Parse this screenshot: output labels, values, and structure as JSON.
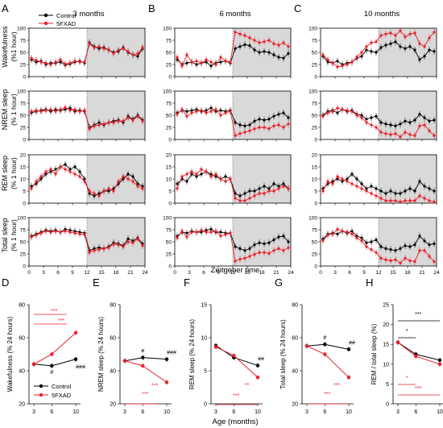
{
  "panel_letters": [
    "A",
    "B",
    "C",
    "D",
    "E",
    "F",
    "G",
    "H"
  ],
  "groups": [
    "3 months",
    "6 months",
    "10 months"
  ],
  "row_labels": [
    [
      "Wakefulness",
      "(%1 hour)"
    ],
    [
      "NREM sleep",
      "(% 1 hour)"
    ],
    [
      "REM sleep",
      "(% 1 hour)"
    ],
    [
      "Total sleep",
      "(% 1 hour)"
    ]
  ],
  "legend": [
    "Control",
    "5FXAD"
  ],
  "top_xlabel": "Zeitgeber time",
  "bottom_xlabel": "Age (months)",
  "colors": {
    "control": "#000000",
    "fad": "#e8202a",
    "dark_phase": "#d9d9d9"
  },
  "chart_data": [
    {
      "type": "line",
      "x": [
        0,
        1,
        2,
        3,
        4,
        5,
        6,
        7,
        8,
        9,
        10,
        11,
        12,
        13,
        14,
        15,
        16,
        17,
        18,
        19,
        20,
        21,
        22,
        23
      ],
      "xticks": [
        0,
        3,
        6,
        9,
        12,
        15,
        18,
        21,
        24
      ],
      "dark_phase": [
        12,
        24
      ],
      "rows": [
        {
          "ylabel": "Wakefulness (%1 hour)",
          "ylim": [
            0,
            100
          ],
          "yticks": [
            0,
            25,
            50,
            75,
            100
          ]
        },
        {
          "ylabel": "NREM sleep (% 1 hour)",
          "ylim": [
            0,
            100
          ],
          "yticks": [
            0,
            25,
            50,
            75,
            100
          ]
        },
        {
          "ylabel": "REM sleep (% 1 hour)",
          "ylim": [
            0,
            20
          ],
          "yticks": [
            0,
            5,
            10,
            15,
            20
          ]
        },
        {
          "ylabel": "Total sleep (% 1 hour)",
          "ylim": [
            0,
            100
          ],
          "yticks": [
            0,
            25,
            50,
            75,
            100
          ]
        }
      ],
      "panels": [
        [
          {
            "control": [
              35,
              30,
              32,
              25,
              28,
              28,
              30,
              24,
              26,
              30,
              32,
              28,
              70,
              62,
              58,
              60,
              55,
              50,
              52,
              60,
              50,
              45,
              42,
              58
            ],
            "fad": [
              38,
              34,
              30,
              28,
              25,
              30,
              35,
              26,
              28,
              32,
              30,
              30,
              68,
              60,
              62,
              58,
              55,
              48,
              55,
              58,
              52,
              45,
              48,
              60
            ]
          },
          {
            "control": [
              55,
              58,
              60,
              62,
              58,
              62,
              60,
              62,
              65,
              58,
              60,
              58,
              25,
              30,
              35,
              30,
              35,
              38,
              40,
              35,
              48,
              42,
              50,
              40
            ],
            "fad": [
              58,
              60,
              58,
              60,
              62,
              58,
              62,
              66,
              60,
              62,
              58,
              60,
              22,
              28,
              30,
              32,
              35,
              35,
              38,
              38,
              45,
              40,
              48,
              38
            ]
          },
          {
            "control": [
              7,
              8,
              10,
              12,
              13,
              14,
              15,
              16,
              14,
              15,
              13,
              10,
              4,
              3,
              4,
              5,
              5,
              6,
              8,
              10,
              12,
              11,
              8,
              7
            ],
            "fad": [
              6,
              9,
              11,
              13,
              14,
              12,
              15,
              14,
              13,
              12,
              11,
              9,
              5,
              4,
              3,
              5,
              6,
              5,
              9,
              11,
              10,
              9,
              7,
              6
            ]
          },
          {
            "control": [
              62,
              66,
              70,
              74,
              72,
              74,
              70,
              76,
              74,
              72,
              70,
              68,
              32,
              36,
              38,
              36,
              40,
              48,
              46,
              42,
              56,
              52,
              58,
              46
            ],
            "fad": [
              60,
              64,
              68,
              72,
              70,
              72,
              70,
              72,
              70,
              68,
              66,
              65,
              28,
              32,
              34,
              36,
              38,
              45,
              44,
              40,
              50,
              48,
              56,
              42
            ]
          }
        ],
        [
          {
            "control": [
              35,
              25,
              28,
              30,
              25,
              28,
              30,
              22,
              28,
              30,
              32,
              28,
              58,
              62,
              66,
              64,
              55,
              50,
              52,
              50,
              45,
              40,
              38,
              48
            ],
            "fad": [
              40,
              22,
              45,
              30,
              32,
              28,
              35,
              30,
              25,
              40,
              32,
              30,
              92,
              88,
              85,
              80,
              75,
              70,
              72,
              75,
              68,
              65,
              70,
              62
            ]
          },
          {
            "control": [
              55,
              60,
              58,
              60,
              62,
              58,
              60,
              65,
              58,
              60,
              58,
              60,
              35,
              30,
              28,
              30,
              38,
              42,
              40,
              42,
              48,
              52,
              55,
              45
            ],
            "fad": [
              52,
              62,
              48,
              55,
              58,
              60,
              55,
              58,
              62,
              50,
              55,
              58,
              8,
              12,
              15,
              18,
              22,
              25,
              25,
              22,
              28,
              30,
              25,
              32
            ]
          },
          {
            "control": [
              8,
              10,
              9,
              12,
              11,
              12,
              13,
              12,
              11,
              10,
              11,
              10,
              4,
              3,
              4,
              5,
              5,
              6,
              7,
              6,
              8,
              7,
              8,
              6
            ],
            "fad": [
              6,
              11,
              12,
              13,
              12,
              14,
              13,
              11,
              12,
              10,
              9,
              10,
              2,
              1,
              1,
              2,
              3,
              4,
              4,
              5,
              5,
              6,
              7,
              6
            ]
          },
          {
            "control": [
              62,
              70,
              68,
              72,
              70,
              70,
              74,
              76,
              70,
              70,
              68,
              68,
              40,
              36,
              32,
              36,
              44,
              48,
              46,
              48,
              54,
              60,
              62,
              50
            ],
            "fad": [
              58,
              72,
              60,
              70,
              70,
              74,
              70,
              70,
              72,
              62,
              65,
              68,
              10,
              14,
              16,
              20,
              24,
              28,
              28,
              26,
              32,
              36,
              32,
              38
            ]
          }
        ],
        [
          {
            "control": [
              42,
              30,
              28,
              32,
              25,
              28,
              30,
              38,
              42,
              55,
              52,
              50,
              60,
              65,
              68,
              72,
              62,
              58,
              62,
              55,
              35,
              42,
              55,
              52
            ],
            "fad": [
              45,
              35,
              28,
              20,
              22,
              25,
              30,
              40,
              50,
              62,
              70,
              72,
              85,
              88,
              90,
              85,
              95,
              82,
              88,
              90,
              68,
              62,
              80,
              92
            ]
          },
          {
            "control": [
              50,
              58,
              60,
              55,
              62,
              58,
              60,
              52,
              50,
              42,
              45,
              48,
              35,
              32,
              30,
              28,
              32,
              38,
              35,
              40,
              52,
              45,
              38,
              40
            ],
            "fad": [
              48,
              55,
              58,
              65,
              62,
              60,
              58,
              50,
              45,
              35,
              30,
              25,
              15,
              12,
              10,
              12,
              5,
              15,
              10,
              8,
              28,
              30,
              18,
              8
            ]
          },
          {
            "control": [
              6,
              8,
              9,
              10,
              9,
              10,
              12,
              10,
              8,
              6,
              7,
              6,
              5,
              4,
              5,
              4,
              4,
              5,
              6,
              5,
              9,
              7,
              6,
              5
            ],
            "fad": [
              5,
              9,
              8,
              11,
              10,
              9,
              8,
              7,
              6,
              5,
              4,
              3,
              2,
              1,
              1,
              1,
              0.5,
              1,
              1,
              1,
              3,
              2,
              1,
              0.5
            ]
          },
          {
            "control": [
              56,
              66,
              68,
              66,
              72,
              68,
              72,
              62,
              58,
              48,
              50,
              54,
              40,
              36,
              34,
              32,
              36,
              42,
              40,
              44,
              62,
              52,
              44,
              46
            ],
            "fad": [
              52,
              64,
              66,
              76,
              72,
              70,
              66,
              58,
              52,
              40,
              34,
              28,
              16,
              13,
              11,
              13,
              6,
              16,
              11,
              9,
              32,
              32,
              20,
              9
            ]
          }
        ]
      ]
    },
    {
      "type": "line",
      "title": "",
      "x": [
        3,
        6,
        10
      ],
      "xticks": [
        3,
        6,
        10
      ],
      "panels": [
        {
          "ylabel": "Wakefulness (% 24 hours)",
          "ylim": [
            20,
            80
          ],
          "yticks": [
            20,
            40,
            60,
            80
          ],
          "control": [
            44,
            43,
            47
          ],
          "fad": [
            44,
            50,
            63
          ],
          "annotations": [
            "#",
            "###",
            "***",
            "***"
          ]
        },
        {
          "ylabel": "NREM sleep (% 24 hours)",
          "ylim": [
            20,
            80
          ],
          "yticks": [
            20,
            40,
            60,
            80
          ],
          "control": [
            46,
            48,
            47
          ],
          "fad": [
            46,
            43,
            33
          ],
          "annotations": [
            "#",
            "###",
            "***",
            "***"
          ]
        },
        {
          "ylabel": "REM sleep (% 24 hours)",
          "ylim": [
            0,
            15
          ],
          "yticks": [
            0,
            5,
            10,
            15
          ],
          "control": [
            8.8,
            7.0,
            5.8
          ],
          "fad": [
            8.6,
            7.3,
            4.0
          ],
          "annotations": [
            "##",
            "**",
            "***"
          ]
        },
        {
          "ylabel": "Total sleep (% 24 hours)",
          "ylim": [
            20,
            80
          ],
          "yticks": [
            20,
            40,
            60,
            80
          ],
          "control": [
            55,
            56,
            53
          ],
          "fad": [
            55,
            50,
            36
          ],
          "annotations": [
            "#",
            "##",
            "***",
            "***"
          ]
        },
        {
          "ylabel": "REM / total sleep (%)",
          "ylim": [
            0,
            25
          ],
          "yticks": [
            0,
            5,
            10,
            15,
            20,
            25
          ],
          "control": [
            15.5,
            12.5,
            11.0
          ],
          "fad": [
            15.5,
            12.0,
            10.0
          ],
          "annotations": [
            "*",
            "***",
            "*",
            "***"
          ]
        }
      ]
    }
  ]
}
